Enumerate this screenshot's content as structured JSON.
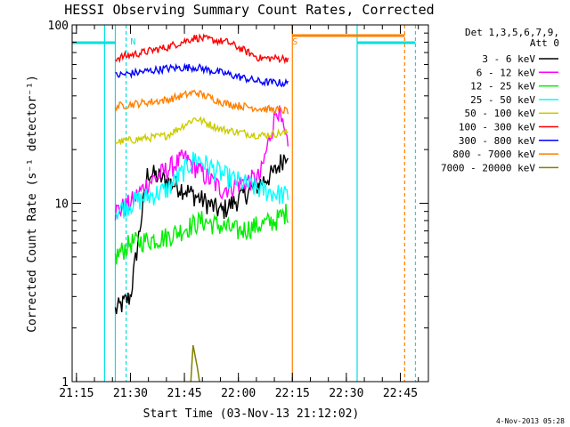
{
  "chart_data": {
    "type": "line",
    "title": "HESSI Observing Summary Count Rates, Corrected",
    "xlabel": "Start Time (03-Nov-13 21:12:02)",
    "ylabel": "Corrected Count Rate (s⁻¹ detector⁻¹)",
    "yscale": "log",
    "ylim": [
      1,
      100
    ],
    "xlim_minutes": [
      21.23,
      22.88
    ],
    "x_ticks": [
      "21:15",
      "21:30",
      "21:45",
      "22:00",
      "22:15",
      "22:30",
      "22:45"
    ],
    "y_ticks": [
      "1",
      "10",
      "100"
    ],
    "legend_header": [
      "Det 1,3,5,6,7,9,",
      "Att 0"
    ],
    "footer_date": "4-Nov-2013 05:28",
    "flags": [
      {
        "label": "N",
        "time": "21:29",
        "color": "#00e0e0"
      },
      {
        "label": "S",
        "time": "22:14",
        "color": "#ff8000"
      }
    ],
    "series": [
      {
        "name": "3 - 6 keV",
        "color": "#000000",
        "levels": [
          [
            21.43,
            2.5
          ],
          [
            21.5,
            3
          ],
          [
            21.58,
            15
          ],
          [
            21.75,
            12
          ],
          [
            21.92,
            9
          ],
          [
            22.17,
            15
          ],
          [
            22.23,
            20
          ]
        ]
      },
      {
        "name": "6 - 12 keV",
        "color": "#ff00ff",
        "levels": [
          [
            21.43,
            9
          ],
          [
            21.5,
            10
          ],
          [
            21.58,
            13
          ],
          [
            21.75,
            18
          ],
          [
            21.92,
            12
          ],
          [
            22.1,
            14
          ],
          [
            22.18,
            35
          ],
          [
            22.23,
            20
          ]
        ]
      },
      {
        "name": "12 - 25 keV",
        "color": "#00ee00",
        "levels": [
          [
            21.43,
            5
          ],
          [
            21.5,
            6
          ],
          [
            21.67,
            6.5
          ],
          [
            21.83,
            8
          ],
          [
            22.0,
            7
          ],
          [
            22.17,
            8
          ],
          [
            22.23,
            9
          ]
        ]
      },
      {
        "name": "25 - 50 keV",
        "color": "#00ffff",
        "levels": [
          [
            21.43,
            9
          ],
          [
            21.5,
            10
          ],
          [
            21.67,
            12
          ],
          [
            21.8,
            18
          ],
          [
            21.95,
            14
          ],
          [
            22.1,
            12
          ],
          [
            22.23,
            11
          ]
        ]
      },
      {
        "name": "50 - 100 keV",
        "color": "#cccc00",
        "levels": [
          [
            21.43,
            22
          ],
          [
            21.67,
            24
          ],
          [
            21.8,
            30
          ],
          [
            21.92,
            26
          ],
          [
            22.1,
            24
          ],
          [
            22.23,
            25
          ]
        ]
      },
      {
        "name": "100 - 300 keV",
        "color": "#ff0000",
        "levels": [
          [
            21.43,
            65
          ],
          [
            21.67,
            75
          ],
          [
            21.8,
            85
          ],
          [
            21.95,
            80
          ],
          [
            22.1,
            65
          ],
          [
            22.23,
            65
          ]
        ]
      },
      {
        "name": "300 - 800 keV",
        "color": "#0000ff",
        "levels": [
          [
            21.43,
            52
          ],
          [
            21.67,
            57
          ],
          [
            21.8,
            58
          ],
          [
            21.95,
            53
          ],
          [
            22.1,
            48
          ],
          [
            22.23,
            47
          ]
        ]
      },
      {
        "name": "800 - 7000 keV",
        "color": "#ff8000",
        "levels": [
          [
            21.43,
            35
          ],
          [
            21.67,
            38
          ],
          [
            21.8,
            42
          ],
          [
            21.95,
            36
          ],
          [
            22.1,
            34
          ],
          [
            22.23,
            33
          ]
        ]
      },
      {
        "name": "7000 - 20000 keV",
        "color": "#808000",
        "levels": [
          [
            21.78,
            1
          ],
          [
            21.79,
            1.6
          ],
          [
            21.81,
            1.2
          ],
          [
            21.82,
            1
          ]
        ]
      }
    ],
    "extra_lines": [
      {
        "color": "#00e0e0",
        "times": [
          21.38,
          22.55,
          22.82
        ],
        "note": "vertical markers"
      },
      {
        "color": "#ff8000",
        "times": [
          22.25,
          22.77
        ],
        "note": "vertical markers"
      }
    ]
  }
}
